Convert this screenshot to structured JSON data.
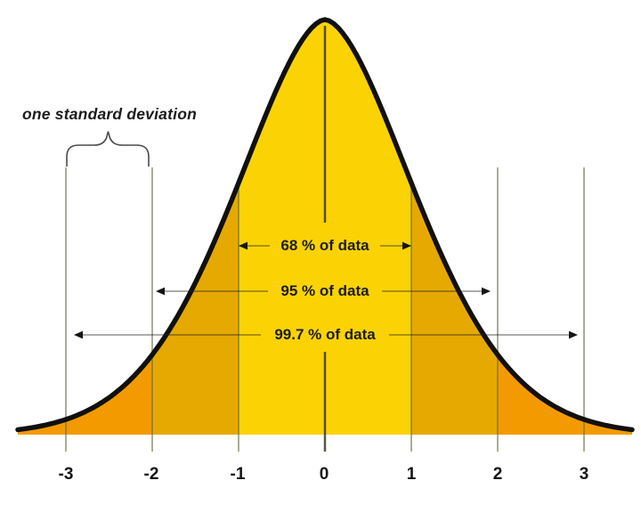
{
  "chart_data": {
    "type": "area",
    "curve": "normal distribution bell curve",
    "x_ticks": [
      "-3",
      "-2",
      "-1",
      "0",
      "1",
      "2",
      "3"
    ],
    "annotations": [
      {
        "label": "68 % of data",
        "percent": 68,
        "from_sigma": -1,
        "to_sigma": 1
      },
      {
        "label": "95 % of data",
        "percent": 95,
        "from_sigma": -2,
        "to_sigma": 2
      },
      {
        "label": "99.7 % of data",
        "percent": 99.7,
        "from_sigma": -3,
        "to_sigma": 3
      }
    ],
    "brace": {
      "label": "one standard deviation",
      "from_sigma": -3,
      "to_sigma": -2
    },
    "colors": {
      "band_center": "#fbd304",
      "band_middle": "#e6a902",
      "band_tail": "#f39a01",
      "curve_stroke": "#101010",
      "sigma_line": "#5f6e3c",
      "zero_line": "#2e2e1a",
      "arrow_line": "#222222",
      "arrow_head": "#151515",
      "brace_stroke": "#4a4a4a",
      "text": "#1b1b1b"
    }
  }
}
